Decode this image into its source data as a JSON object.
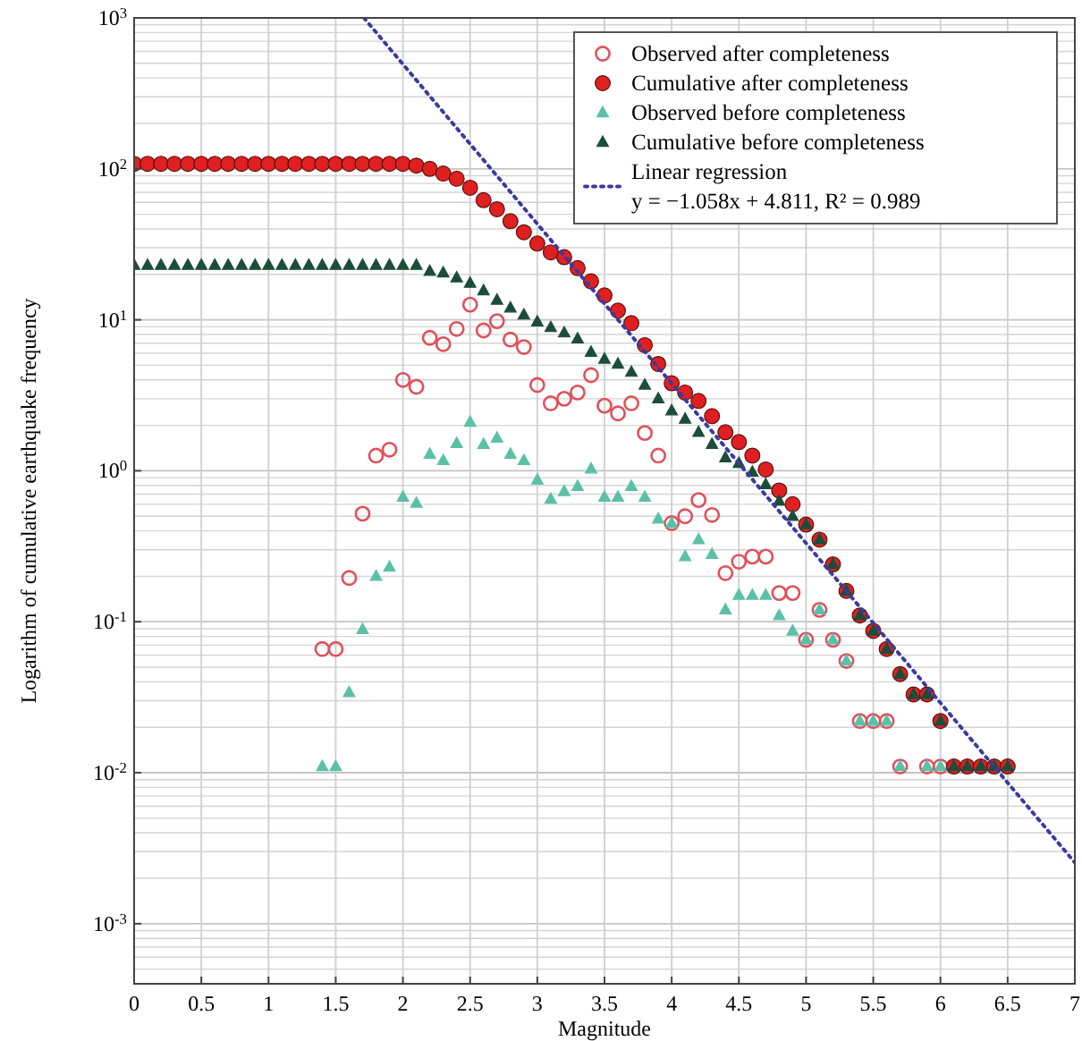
{
  "chart_data": {
    "type": "scatter",
    "xlabel": "Magnitude",
    "ylabel": "Logarithm of cumulative earthquake frequency",
    "log": "y",
    "grid": true,
    "legend": "top right",
    "xlim": [
      0,
      7
    ],
    "xticks": [
      0,
      {
        "value": 0.5,
        "label": "0.5"
      },
      1,
      {
        "value": 1.5,
        "label": "1.5"
      },
      2,
      {
        "value": 2.5,
        "label": "2.5"
      },
      3,
      {
        "value": 3.5,
        "label": "3.5"
      },
      4,
      {
        "value": 4.5,
        "label": "4.5"
      },
      5,
      {
        "value": 5.5,
        "label": "5.5"
      },
      6,
      {
        "value": 6.5,
        "label": "6.5"
      },
      7
    ],
    "ylim": [
      0.0004,
      1000
    ],
    "yticks": [
      {
        "value": 0.001,
        "label": "10$^{-3}$"
      },
      {
        "value": 0.01,
        "label": "10$^{-2}$"
      },
      {
        "value": 0.1,
        "label": "10$^{-1}$"
      },
      {
        "value": 1,
        "label": "10$^{0}$"
      },
      {
        "value": 10,
        "label": "10$^{1}$"
      },
      {
        "value": 100,
        "label": "10$^{2}$"
      },
      {
        "value": 1000,
        "label": "10$^{3}$"
      }
    ],
    "series": [
      {
        "name": "Observed after completeness",
        "color": "#e0505a",
        "marker": "circle",
        "x": [
          1.4,
          1.5,
          1.6,
          1.7,
          1.8,
          1.9,
          2.0,
          2.1,
          2.2,
          2.3,
          2.4,
          2.5,
          2.6,
          2.7,
          2.8,
          2.9,
          3.0,
          3.1,
          3.2,
          3.3,
          3.4,
          3.5,
          3.6,
          3.7,
          3.8,
          3.9,
          4.0,
          4.1,
          4.2,
          4.3,
          4.4,
          4.5,
          4.6,
          4.7,
          4.8,
          4.9,
          5.0,
          5.1,
          5.2,
          5.3,
          5.4,
          5.5,
          5.6,
          5.7,
          5.9,
          6.0
        ],
        "values": [
          0.066,
          0.066,
          0.195,
          0.52,
          1.26,
          1.38,
          4.0,
          3.6,
          7.6,
          6.9,
          8.7,
          12.6,
          8.5,
          9.8,
          7.4,
          6.6,
          3.7,
          2.8,
          3.0,
          3.3,
          4.3,
          2.7,
          2.4,
          2.8,
          1.78,
          1.26,
          0.45,
          0.5,
          0.64,
          0.51,
          0.21,
          0.25,
          0.27,
          0.27,
          0.155,
          0.155,
          0.076,
          0.12,
          0.076,
          0.055,
          0.022,
          0.022,
          0.022,
          0.011,
          0.011,
          0.011
        ]
      },
      {
        "name": "Cumulative after completeness",
        "color": "#e02020",
        "marker": "circle",
        "x": [
          0,
          0.1,
          0.2,
          0.3,
          0.4,
          0.5,
          0.6,
          0.7,
          0.8,
          0.9,
          1.0,
          1.1,
          1.2,
          1.3,
          1.4,
          1.5,
          1.6,
          1.7,
          1.8,
          1.9,
          2.0,
          2.1,
          2.2,
          2.3,
          2.4,
          2.5,
          2.6,
          2.7,
          2.8,
          2.9,
          3.0,
          3.1,
          3.2,
          3.3,
          3.4,
          3.5,
          3.6,
          3.7,
          3.8,
          3.9,
          4.0,
          4.1,
          4.2,
          4.3,
          4.4,
          4.5,
          4.6,
          4.7,
          4.8,
          4.9,
          5.0,
          5.1,
          5.2,
          5.3,
          5.4,
          5.5,
          5.6,
          5.7,
          5.8,
          5.9,
          6.0,
          6.1,
          6.2,
          6.3,
          6.4,
          6.5
        ],
        "values": [
          108,
          108,
          108,
          108,
          108,
          108,
          108,
          108,
          108,
          108,
          108,
          108,
          108,
          108,
          108,
          108,
          108,
          108,
          108,
          108,
          108,
          105,
          100,
          93,
          86,
          75,
          62,
          54,
          45,
          38,
          32,
          28,
          26,
          22,
          18,
          14.5,
          11.5,
          9.5,
          6.8,
          5.1,
          3.8,
          3.3,
          2.9,
          2.3,
          1.8,
          1.55,
          1.26,
          1.02,
          0.74,
          0.6,
          0.44,
          0.35,
          0.24,
          0.16,
          0.11,
          0.087,
          0.066,
          0.045,
          0.033,
          0.033,
          0.022,
          0.011,
          0.011,
          0.011,
          0.011,
          0.011
        ]
      },
      {
        "name": "Observed before completeness",
        "color": "#5cc0a8",
        "marker": "triangle",
        "x": [
          1.4,
          1.5,
          1.6,
          1.7,
          1.8,
          1.9,
          2.0,
          2.1,
          2.2,
          2.3,
          2.4,
          2.5,
          2.6,
          2.7,
          2.8,
          2.9,
          3.0,
          3.1,
          3.2,
          3.3,
          3.4,
          3.5,
          3.6,
          3.7,
          3.8,
          3.9,
          4.0,
          4.1,
          4.2,
          4.3,
          4.4,
          4.5,
          4.6,
          4.7,
          4.8,
          4.9,
          5.0,
          5.1,
          5.2,
          5.3,
          5.4,
          5.5,
          5.6,
          5.7,
          5.9,
          6.0
        ],
        "values": [
          0.011,
          0.011,
          0.034,
          0.089,
          0.2,
          0.23,
          0.67,
          0.61,
          1.29,
          1.17,
          1.52,
          2.1,
          1.5,
          1.65,
          1.29,
          1.17,
          0.87,
          0.65,
          0.73,
          0.79,
          1.03,
          0.67,
          0.67,
          0.79,
          0.67,
          0.48,
          0.45,
          0.27,
          0.35,
          0.28,
          0.12,
          0.15,
          0.15,
          0.15,
          0.11,
          0.087,
          0.076,
          0.12,
          0.076,
          0.055,
          0.022,
          0.022,
          0.022,
          0.011,
          0.011,
          0.011
        ]
      },
      {
        "name": "Cumulative before completeness",
        "color": "#1d4d3a",
        "marker": "triangle",
        "x": [
          0,
          0.1,
          0.2,
          0.3,
          0.4,
          0.5,
          0.6,
          0.7,
          0.8,
          0.9,
          1.0,
          1.1,
          1.2,
          1.3,
          1.4,
          1.5,
          1.6,
          1.7,
          1.8,
          1.9,
          2.0,
          2.1,
          2.2,
          2.3,
          2.4,
          2.5,
          2.6,
          2.7,
          2.8,
          2.9,
          3.0,
          3.1,
          3.2,
          3.3,
          3.4,
          3.5,
          3.6,
          3.7,
          3.8,
          3.9,
          4.0,
          4.1,
          4.2,
          4.3,
          4.4,
          4.5,
          4.6,
          4.7,
          4.8,
          4.9,
          5.0,
          5.1,
          5.2,
          5.3,
          5.4,
          5.5,
          5.6,
          5.7,
          5.8,
          5.9,
          6.0,
          6.1,
          6.2,
          6.3,
          6.4,
          6.5
        ],
        "values": [
          23,
          23,
          23,
          23,
          23,
          23,
          23,
          23,
          23,
          23,
          23,
          23,
          23,
          23,
          23,
          23,
          23,
          23,
          23,
          23,
          23,
          23,
          21,
          20.5,
          19,
          17.5,
          15.6,
          13.5,
          12,
          10.8,
          9.7,
          8.9,
          8.2,
          7.5,
          6.1,
          5.5,
          5.1,
          4.5,
          3.7,
          3.0,
          2.5,
          2.2,
          1.8,
          1.5,
          1.22,
          1.12,
          0.98,
          0.81,
          0.63,
          0.5,
          0.44,
          0.35,
          0.24,
          0.16,
          0.11,
          0.087,
          0.066,
          0.045,
          0.033,
          0.033,
          0.022,
          0.011,
          0.011,
          0.011,
          0.011,
          0.011
        ]
      },
      {
        "name": "Linear regression\ny = −1.058x + 4.811, R² = 0.989",
        "type": "line",
        "color": "#3a3aa0",
        "line_style": "dotted",
        "marker": "none",
        "x": [
          1.71,
          7
        ],
        "values": [
          1000,
          0.00254
        ]
      }
    ]
  }
}
